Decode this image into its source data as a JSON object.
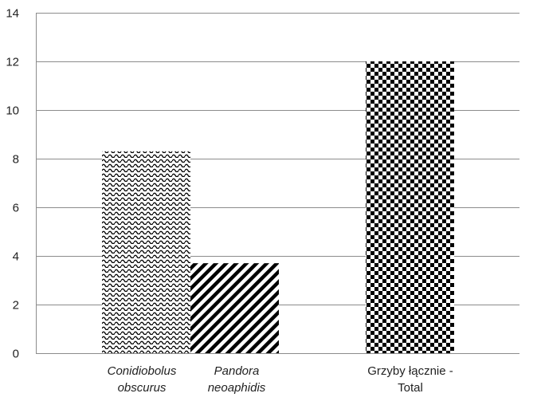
{
  "chart_data": {
    "type": "bar",
    "categories": [
      {
        "lines": [
          "Conidiobolus",
          "obscurus"
        ],
        "italic": true
      },
      {
        "lines": [
          "Pandora",
          "neoaphidis"
        ],
        "italic": true
      },
      {
        "lines": [
          "Grzyby łącznie -",
          "Total"
        ],
        "italic": false
      }
    ],
    "values": [
      8.3,
      3.7,
      12.0
    ],
    "patterns": [
      "wave",
      "diagonal-stripes",
      "checkerboard"
    ],
    "ylim": [
      0,
      14
    ],
    "yticks": [
      0,
      2,
      4,
      6,
      8,
      10,
      12,
      14
    ],
    "grid": true,
    "legend": "none",
    "title": "",
    "xlabel": "",
    "ylabel": ""
  },
  "colors": {
    "bar_ink": "#000000",
    "grid": "#8c8c8c",
    "axis": "#8c8c8c",
    "text": "#222222"
  }
}
